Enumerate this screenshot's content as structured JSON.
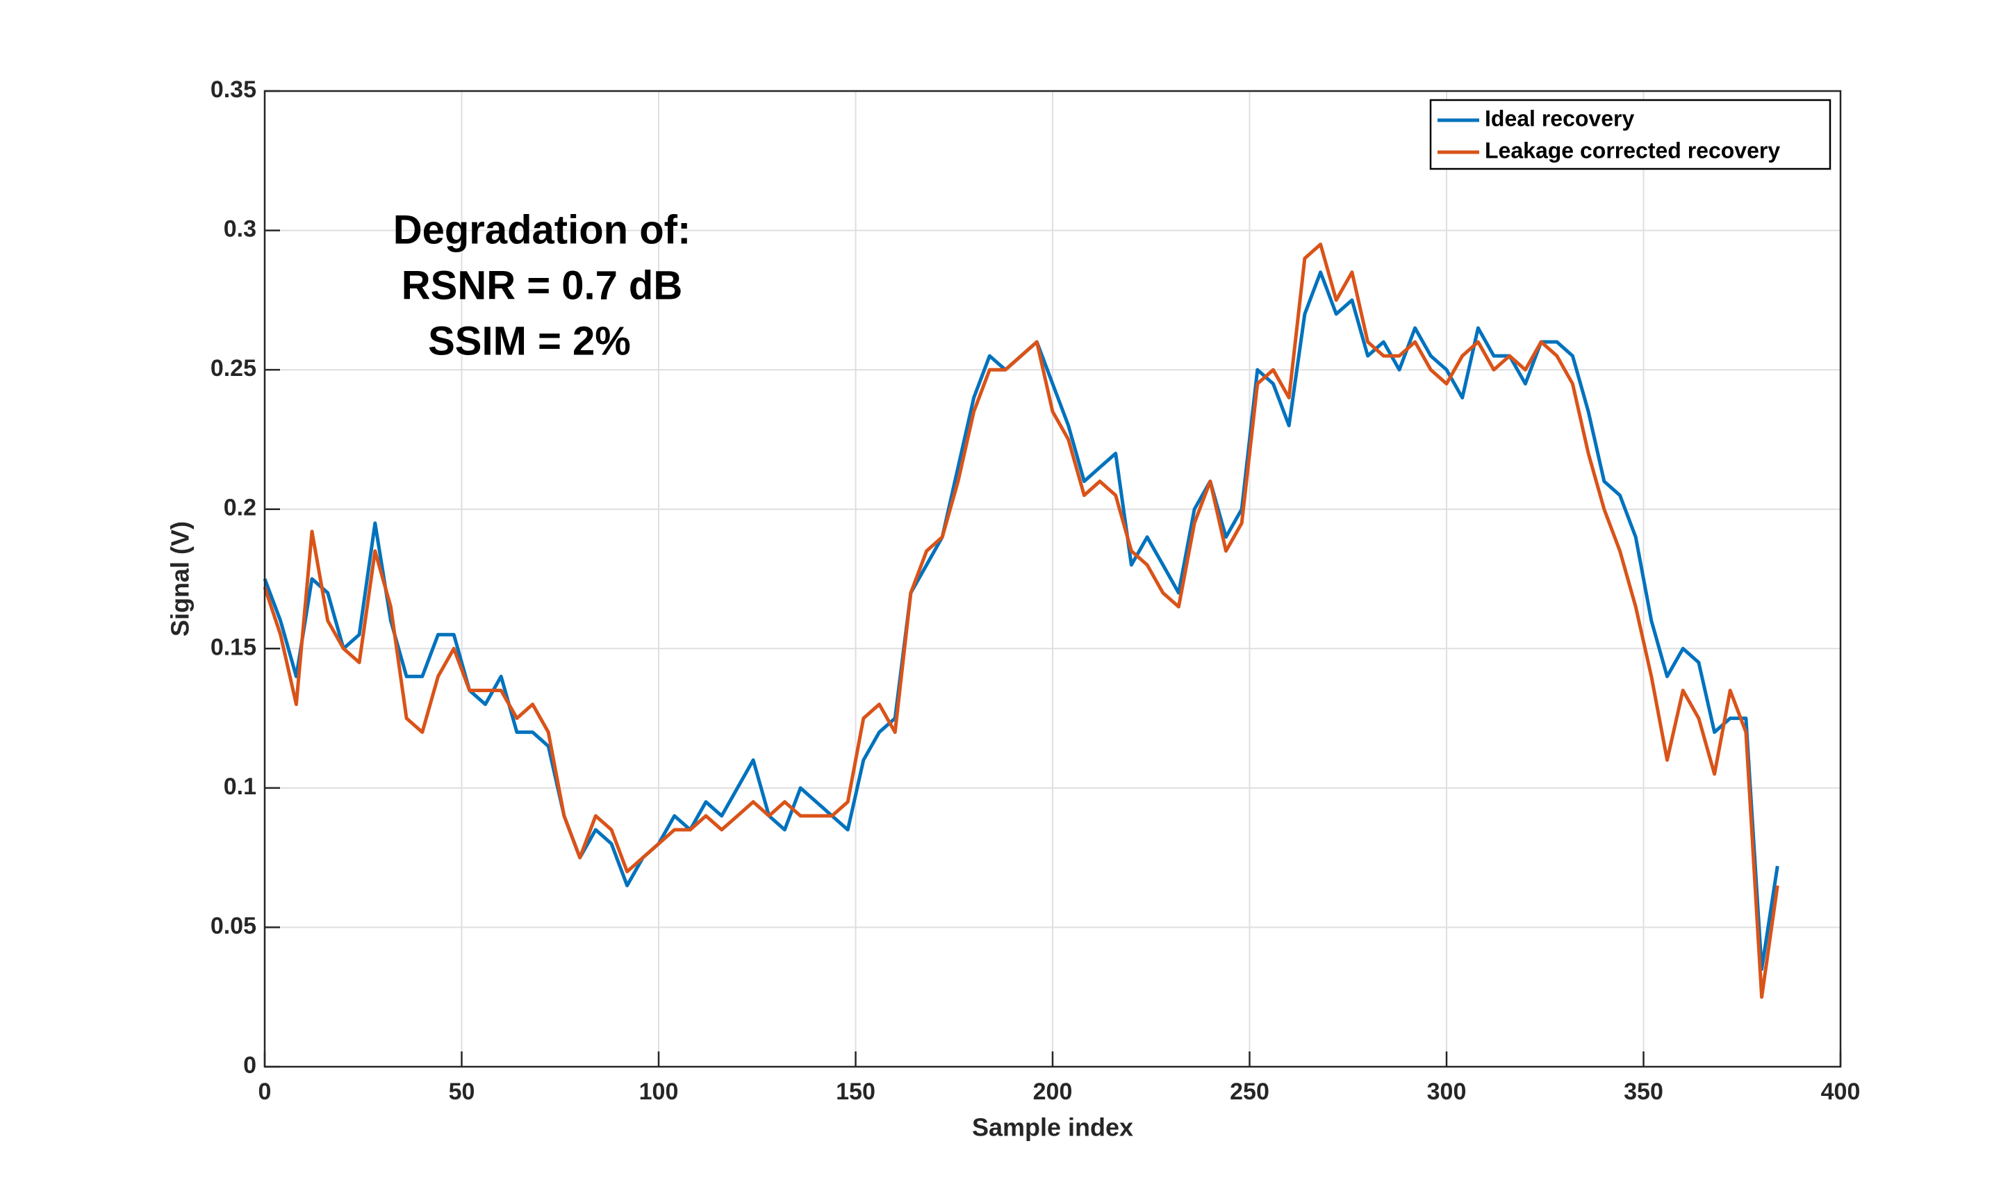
{
  "chart_data": {
    "type": "line",
    "xlabel": "Sample index",
    "ylabel": "Signal (V)",
    "annotations": [
      "Degradation of:",
      "RSNR = 0.7 dB",
      "SSIM = 2%"
    ],
    "xlim": [
      0,
      400
    ],
    "xticks": [
      0,
      50,
      100,
      150,
      200,
      250,
      300,
      350,
      400
    ],
    "ylim": [
      0,
      0.35
    ],
    "yticks": [
      0,
      0.05,
      0.1,
      0.15,
      0.2,
      0.25,
      0.3,
      0.35
    ],
    "grid": true,
    "legend": "northeast",
    "x": [
      0,
      4,
      8,
      12,
      16,
      20,
      24,
      28,
      32,
      36,
      40,
      44,
      48,
      52,
      56,
      60,
      64,
      68,
      72,
      76,
      80,
      84,
      88,
      92,
      96,
      100,
      104,
      108,
      112,
      116,
      120,
      124,
      128,
      132,
      136,
      140,
      144,
      148,
      152,
      156,
      160,
      164,
      168,
      172,
      176,
      180,
      184,
      188,
      192,
      196,
      200,
      204,
      208,
      212,
      216,
      220,
      224,
      228,
      232,
      236,
      240,
      244,
      248,
      252,
      256,
      260,
      264,
      268,
      272,
      276,
      280,
      284,
      288,
      292,
      296,
      300,
      304,
      308,
      312,
      316,
      320,
      324,
      328,
      332,
      336,
      340,
      344,
      348,
      352,
      356,
      360,
      364,
      368,
      372,
      376,
      380,
      384
    ],
    "series": [
      {
        "name": "Ideal recovery",
        "color": "#0072bd",
        "values": [
          0.175,
          0.16,
          0.14,
          0.175,
          0.17,
          0.15,
          0.155,
          0.195,
          0.16,
          0.14,
          0.14,
          0.155,
          0.155,
          0.135,
          0.13,
          0.14,
          0.12,
          0.12,
          0.115,
          0.09,
          0.075,
          0.085,
          0.08,
          0.065,
          0.075,
          0.08,
          0.09,
          0.085,
          0.095,
          0.09,
          0.1,
          0.11,
          0.09,
          0.085,
          0.1,
          0.095,
          0.09,
          0.085,
          0.11,
          0.12,
          0.125,
          0.17,
          0.18,
          0.19,
          0.215,
          0.24,
          0.255,
          0.25,
          0.255,
          0.26,
          0.245,
          0.23,
          0.21,
          0.215,
          0.22,
          0.18,
          0.19,
          0.18,
          0.17,
          0.2,
          0.21,
          0.19,
          0.2,
          0.25,
          0.245,
          0.23,
          0.27,
          0.285,
          0.27,
          0.275,
          0.255,
          0.26,
          0.25,
          0.265,
          0.255,
          0.25,
          0.24,
          0.265,
          0.255,
          0.255,
          0.245,
          0.26,
          0.26,
          0.255,
          0.235,
          0.21,
          0.205,
          0.19,
          0.16,
          0.14,
          0.15,
          0.145,
          0.12,
          0.125,
          0.125,
          0.035,
          0.072
        ]
      },
      {
        "name": "Leakage corrected recovery",
        "color": "#d95319",
        "values": [
          0.172,
          0.155,
          0.13,
          0.192,
          0.16,
          0.15,
          0.145,
          0.185,
          0.165,
          0.125,
          0.12,
          0.14,
          0.15,
          0.135,
          0.135,
          0.135,
          0.125,
          0.13,
          0.12,
          0.09,
          0.075,
          0.09,
          0.085,
          0.07,
          0.075,
          0.08,
          0.085,
          0.085,
          0.09,
          0.085,
          0.09,
          0.095,
          0.09,
          0.095,
          0.09,
          0.09,
          0.09,
          0.095,
          0.125,
          0.13,
          0.12,
          0.17,
          0.185,
          0.19,
          0.21,
          0.235,
          0.25,
          0.25,
          0.255,
          0.26,
          0.235,
          0.225,
          0.205,
          0.21,
          0.205,
          0.185,
          0.18,
          0.17,
          0.165,
          0.195,
          0.21,
          0.185,
          0.195,
          0.245,
          0.25,
          0.24,
          0.29,
          0.295,
          0.275,
          0.285,
          0.26,
          0.255,
          0.255,
          0.26,
          0.25,
          0.245,
          0.255,
          0.26,
          0.25,
          0.255,
          0.25,
          0.26,
          0.255,
          0.245,
          0.22,
          0.2,
          0.185,
          0.165,
          0.14,
          0.11,
          0.135,
          0.125,
          0.105,
          0.135,
          0.12,
          0.025,
          0.065
        ]
      }
    ]
  }
}
